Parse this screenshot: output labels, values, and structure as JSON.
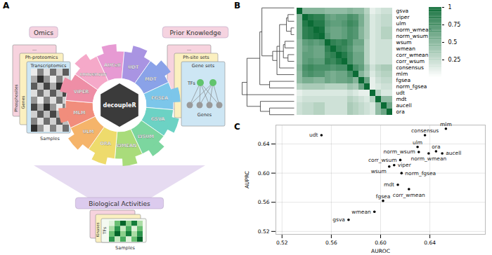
{
  "panel_labels": [
    "A",
    "B",
    "C"
  ],
  "diagram": {
    "input": {
      "title": "Omics",
      "cards": [
        "...",
        "Ph-proteomics",
        "Transcriptomics"
      ],
      "row_labels": [
        "Phosphosites",
        "Genes"
      ],
      "column_label": "Samples"
    },
    "prior": {
      "title": "Prior Knowledge",
      "cards": [
        "...",
        "Ph-site sets",
        "Gene sets"
      ],
      "source_label": "TFs",
      "target_label": "Genes"
    },
    "center": "decoupleR",
    "methods": [
      {
        "label": "AUCell",
        "color": "#e79ad3"
      },
      {
        "label": "UDT",
        "color": "#a994e2"
      },
      {
        "label": "MDT",
        "color": "#8aa2e8"
      },
      {
        "label": "FGSEA",
        "color": "#7cc6ea"
      },
      {
        "label": "GSVA",
        "color": "#6cd2c4"
      },
      {
        "label": "WSUM",
        "color": "#7cd69f"
      },
      {
        "label": "WMEAN",
        "color": "#a9dc7b"
      },
      {
        "label": "ORA",
        "color": "#eedb6c"
      },
      {
        "label": "ULM",
        "color": "#f5b46a"
      },
      {
        "label": "MLM",
        "color": "#f18d7c"
      },
      {
        "label": "VIPER",
        "color": "#ee8ea6"
      },
      {
        "label": "consensus",
        "color": "#f5a9c9"
      }
    ],
    "output": {
      "title": "Biological Activities",
      "card_title": "...",
      "row_labels": [
        "Kinases",
        "TFs"
      ],
      "column_label": "Samples"
    }
  },
  "chart_data": [
    {
      "type": "heatmap",
      "categories": [
        "gsva",
        "viper",
        "ulm",
        "norm_wmean",
        "norm_wsum",
        "wsum",
        "wmean",
        "corr_wmean",
        "corr_wsum",
        "consensus",
        "mlm",
        "fgsea",
        "norm_fgsea",
        "udt",
        "mdt",
        "aucell",
        "ora"
      ],
      "values": [
        [
          1,
          0.5,
          0.5,
          0.5,
          0.5,
          0.45,
          0.45,
          0.45,
          0.45,
          0.5,
          0.45,
          0.45,
          0.3,
          0.1,
          0.15,
          0.2,
          0.2
        ],
        [
          0.5,
          1,
          0.9,
          0.85,
          0.85,
          0.65,
          0.6,
          0.65,
          0.65,
          0.75,
          0.7,
          0.55,
          0.35,
          0.15,
          0.2,
          0.25,
          0.25
        ],
        [
          0.5,
          0.9,
          1,
          0.9,
          0.9,
          0.7,
          0.65,
          0.65,
          0.7,
          0.8,
          0.75,
          0.55,
          0.35,
          0.15,
          0.2,
          0.25,
          0.25
        ],
        [
          0.5,
          0.85,
          0.9,
          1,
          0.95,
          0.65,
          0.6,
          0.6,
          0.65,
          0.75,
          0.7,
          0.5,
          0.35,
          0.15,
          0.2,
          0.3,
          0.3
        ],
        [
          0.5,
          0.85,
          0.9,
          0.95,
          1,
          0.7,
          0.6,
          0.6,
          0.65,
          0.75,
          0.7,
          0.5,
          0.35,
          0.15,
          0.2,
          0.3,
          0.3
        ],
        [
          0.45,
          0.65,
          0.7,
          0.65,
          0.7,
          1,
          0.85,
          0.8,
          0.85,
          0.75,
          0.6,
          0.6,
          0.3,
          0.15,
          0.2,
          0.2,
          0.2
        ],
        [
          0.45,
          0.6,
          0.65,
          0.6,
          0.6,
          0.85,
          1,
          0.85,
          0.8,
          0.7,
          0.55,
          0.55,
          0.3,
          0.15,
          0.2,
          0.2,
          0.2
        ],
        [
          0.45,
          0.65,
          0.65,
          0.6,
          0.6,
          0.8,
          0.85,
          1,
          0.9,
          0.75,
          0.6,
          0.6,
          0.3,
          0.15,
          0.2,
          0.2,
          0.2
        ],
        [
          0.45,
          0.65,
          0.7,
          0.65,
          0.65,
          0.85,
          0.8,
          0.9,
          1,
          0.75,
          0.6,
          0.6,
          0.3,
          0.15,
          0.2,
          0.2,
          0.2
        ],
        [
          0.5,
          0.75,
          0.8,
          0.75,
          0.75,
          0.75,
          0.7,
          0.75,
          0.75,
          1,
          0.75,
          0.65,
          0.4,
          0.2,
          0.3,
          0.35,
          0.35
        ],
        [
          0.45,
          0.7,
          0.75,
          0.7,
          0.7,
          0.6,
          0.55,
          0.6,
          0.6,
          0.75,
          1,
          0.5,
          0.35,
          0.15,
          0.25,
          0.3,
          0.3
        ],
        [
          0.45,
          0.55,
          0.55,
          0.5,
          0.5,
          0.6,
          0.55,
          0.6,
          0.6,
          0.65,
          0.5,
          1,
          0.6,
          0.1,
          0.2,
          0.25,
          0.25
        ],
        [
          0.3,
          0.35,
          0.35,
          0.35,
          0.35,
          0.3,
          0.3,
          0.3,
          0.3,
          0.4,
          0.35,
          0.6,
          1,
          0.1,
          0.15,
          0.2,
          0.2
        ],
        [
          0.1,
          0.15,
          0.15,
          0.15,
          0.15,
          0.15,
          0.15,
          0.15,
          0.15,
          0.2,
          0.15,
          0.1,
          0.1,
          1,
          0.3,
          0.15,
          0.15
        ],
        [
          0.15,
          0.2,
          0.2,
          0.2,
          0.2,
          0.2,
          0.2,
          0.2,
          0.2,
          0.3,
          0.25,
          0.2,
          0.15,
          0.3,
          1,
          0.45,
          0.45
        ],
        [
          0.2,
          0.25,
          0.25,
          0.3,
          0.3,
          0.2,
          0.2,
          0.2,
          0.2,
          0.35,
          0.3,
          0.25,
          0.2,
          0.15,
          0.45,
          1,
          0.6
        ],
        [
          0.2,
          0.25,
          0.25,
          0.3,
          0.3,
          0.2,
          0.2,
          0.2,
          0.2,
          0.35,
          0.3,
          0.25,
          0.2,
          0.15,
          0.45,
          0.6,
          1
        ]
      ],
      "colorbar": {
        "range": [
          0,
          1
        ],
        "ticks": [
          0.25,
          0.5,
          0.75,
          1
        ],
        "colors": [
          "#ffffff",
          "#0b6b35"
        ]
      }
    },
    {
      "type": "scatter",
      "x_label": "AUROC",
      "y_label": "AUPRC",
      "color": "#000000",
      "grid": true,
      "xlim": [
        0.515,
        0.685
      ],
      "ylim": [
        0.516,
        0.666
      ],
      "xticks": [
        0.52,
        0.56,
        {
          "value": 0.6,
          "label": "0.60"
        },
        0.64
      ],
      "yticks": [
        0.52,
        0.56,
        {
          "value": 0.6,
          "label": "0.60"
        },
        0.64
      ],
      "points": [
        {
          "label": "mlm",
          "x": 0.653,
          "y": 0.661
        },
        {
          "label": "consensus",
          "x": 0.636,
          "y": 0.652
        },
        {
          "label": "udt",
          "x": 0.552,
          "y": 0.652
        },
        {
          "label": "ulm",
          "x": 0.63,
          "y": 0.636
        },
        {
          "label": "ora",
          "x": 0.645,
          "y": 0.63
        },
        {
          "label": "norm_wsum",
          "x": 0.631,
          "y": 0.629
        },
        {
          "label": "aucell",
          "x": 0.65,
          "y": 0.627
        },
        {
          "label": "norm_wmean",
          "x": 0.639,
          "y": 0.627
        },
        {
          "label": "corr_wsum",
          "x": 0.616,
          "y": 0.618
        },
        {
          "label": "viper",
          "x": 0.611,
          "y": 0.611
        },
        {
          "label": "wsum",
          "x": 0.607,
          "y": 0.609
        },
        {
          "label": "norm_fgsea",
          "x": 0.617,
          "y": 0.6
        },
        {
          "label": "mdt",
          "x": 0.614,
          "y": 0.584
        },
        {
          "label": "corr_wmean",
          "x": 0.623,
          "y": 0.578
        },
        {
          "label": "fgsea",
          "x": 0.602,
          "y": 0.562
        },
        {
          "label": "wmean",
          "x": 0.595,
          "y": 0.547
        },
        {
          "label": "gsva",
          "x": 0.574,
          "y": 0.536
        }
      ]
    }
  ]
}
